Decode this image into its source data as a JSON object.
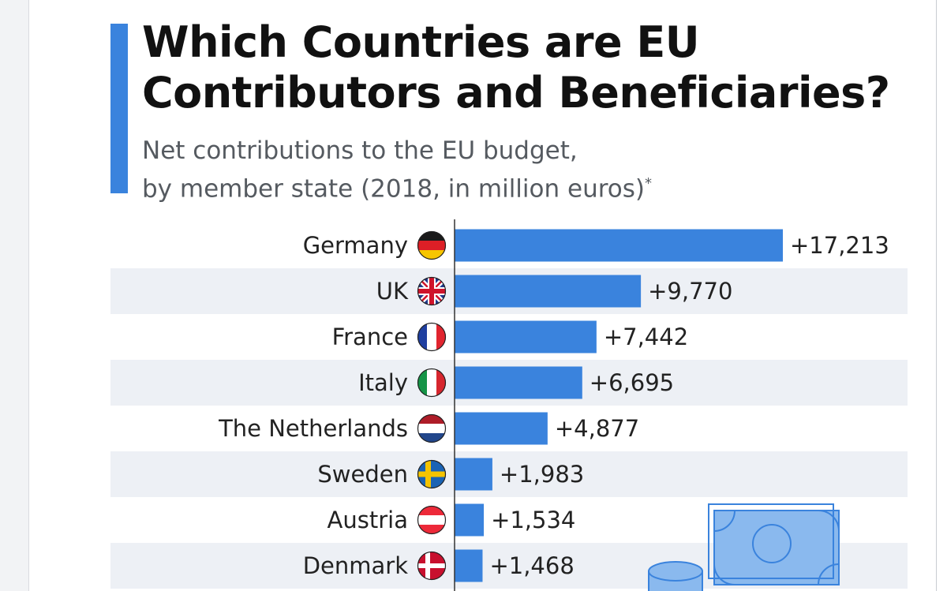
{
  "colors": {
    "bar": "#3a83dd",
    "stripe": "#edf0f5",
    "text": "#222222",
    "accent": "#3a83dd"
  },
  "header": {
    "title_line1": "Which Countries are EU",
    "title_line2": "Contributors and Beneficiaries?",
    "subtitle_line1": "Net contributions to the EU budget,",
    "subtitle_line2": "by member state (2018, in million euros)",
    "subtitle_mark": "*"
  },
  "chart_data": {
    "type": "bar",
    "orientation": "horizontal",
    "title": "Which Countries are EU Contributors and Beneficiaries?",
    "subtitle": "Net contributions to the EU budget, by member state (2018, in million euros)*",
    "categories": [
      "Germany",
      "UK",
      "France",
      "Italy",
      "The Netherlands",
      "Sweden",
      "Austria",
      "Denmark"
    ],
    "flags": [
      "flag-germany",
      "flag-uk",
      "flag-france",
      "flag-italy",
      "flag-netherlands",
      "flag-sweden",
      "flag-austria",
      "flag-denmark"
    ],
    "values": [
      17213,
      9770,
      7442,
      6695,
      4877,
      1983,
      1534,
      1468
    ],
    "labels": [
      "+17,213",
      "+9,770",
      "+7,442",
      "+6,695",
      "+4,877",
      "+1,983",
      "+1,534",
      "+1,468"
    ],
    "xlim": [
      0,
      17213
    ],
    "xlabel": "",
    "ylabel": "",
    "grid": false
  }
}
